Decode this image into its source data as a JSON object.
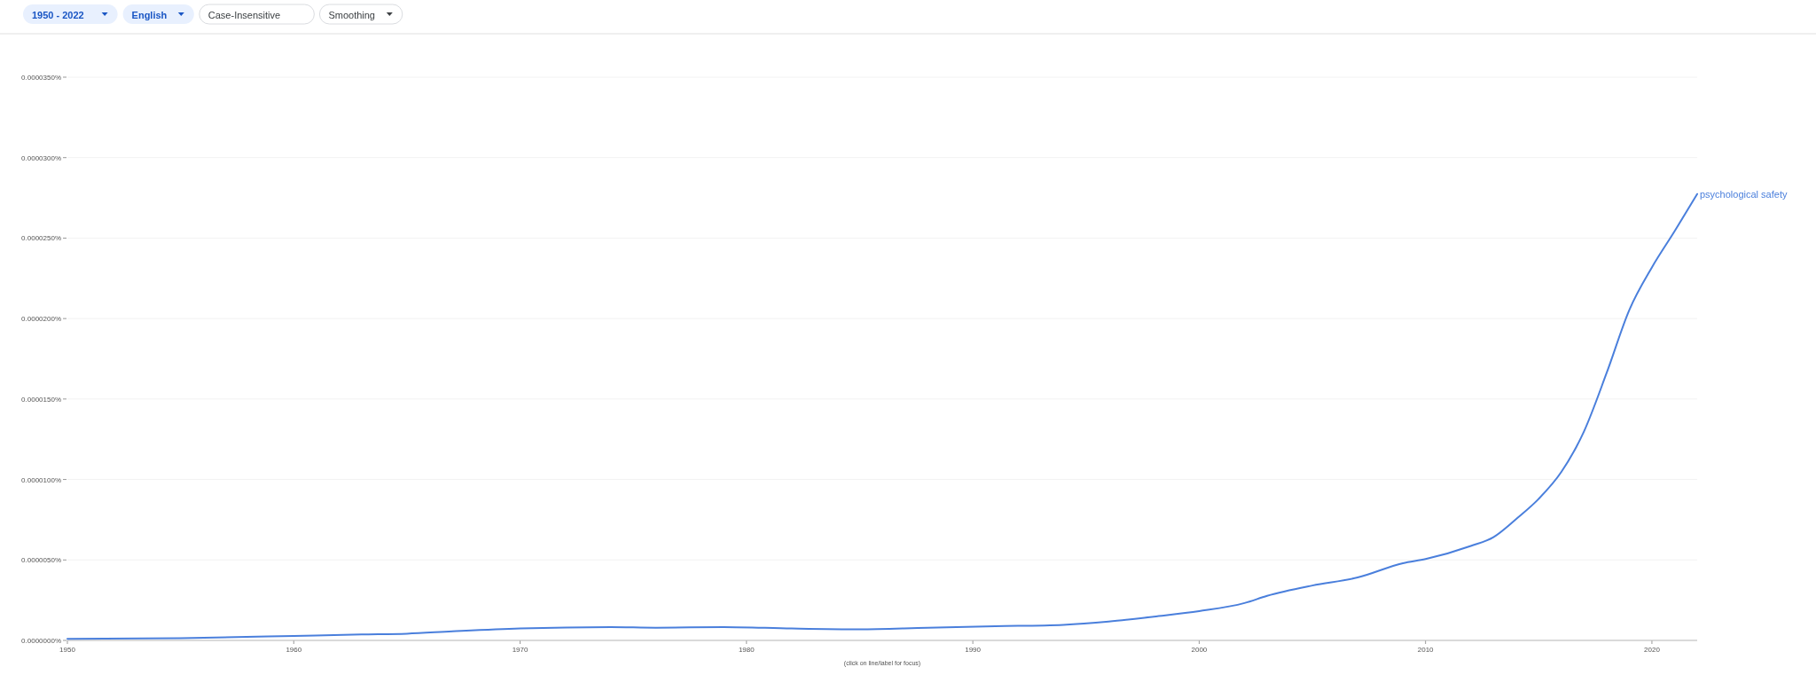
{
  "chart_data": {
    "type": "line",
    "x": [
      1950,
      1955,
      1960,
      1963,
      1965,
      1967,
      1970,
      1974,
      1976,
      1979,
      1982,
      1985,
      1988,
      1991,
      1994,
      1996,
      1998,
      2000,
      2002,
      2003,
      2005,
      2007,
      2009,
      2010,
      2012,
      2013,
      2014,
      2015,
      2016,
      2017,
      2018,
      2019,
      2020,
      2021,
      2022
    ],
    "series": [
      {
        "name": "psychological safety",
        "color": "#4a7fdc",
        "values": [
          9e-08,
          1.4e-07,
          2.8e-07,
          3.7e-07,
          4.2e-07,
          5.6e-07,
          7.4e-07,
          8.3e-07,
          7.9e-07,
          8.3e-07,
          7.4e-07,
          6.9e-07,
          7.9e-07,
          8.8e-07,
          9.7e-07,
          1.17e-06,
          1.48e-06,
          1.82e-06,
          2.32e-06,
          2.77e-06,
          3.41e-06,
          3.91e-06,
          4.8e-06,
          5.06e-06,
          5.87e-06,
          6.42e-06,
          7.54e-06,
          8.8e-06,
          1.047e-05,
          1.299e-05,
          1.662e-05,
          2.053e-05,
          2.318e-05,
          2.542e-05,
          2.774e-05
        ]
      }
    ],
    "xlim": [
      1950,
      2022
    ],
    "xticks": [
      1950,
      1960,
      1970,
      1980,
      1990,
      2000,
      2010,
      2020
    ],
    "ylim": [
      0,
      3.5e-05
    ],
    "yticks": [
      {
        "value": 0,
        "label": "0.0000000%"
      },
      {
        "value": 5e-06,
        "label": "0.0000050%"
      },
      {
        "value": 1e-05,
        "label": "0.0000100%"
      },
      {
        "value": 1.5e-05,
        "label": "0.0000150%"
      },
      {
        "value": 2e-05,
        "label": "0.0000200%"
      },
      {
        "value": 2.5e-05,
        "label": "0.0000250%"
      },
      {
        "value": 3e-05,
        "label": "0.0000300%"
      },
      {
        "value": 3.5e-05,
        "label": "0.0000350%"
      }
    ],
    "grid": "y",
    "legend": false,
    "marker": "none",
    "line_style": "solid",
    "annotations": [
      "1950 - 2022",
      "English",
      "Case-Insensitive",
      "Smoothing",
      "(click on line/label for focus)"
    ]
  }
}
